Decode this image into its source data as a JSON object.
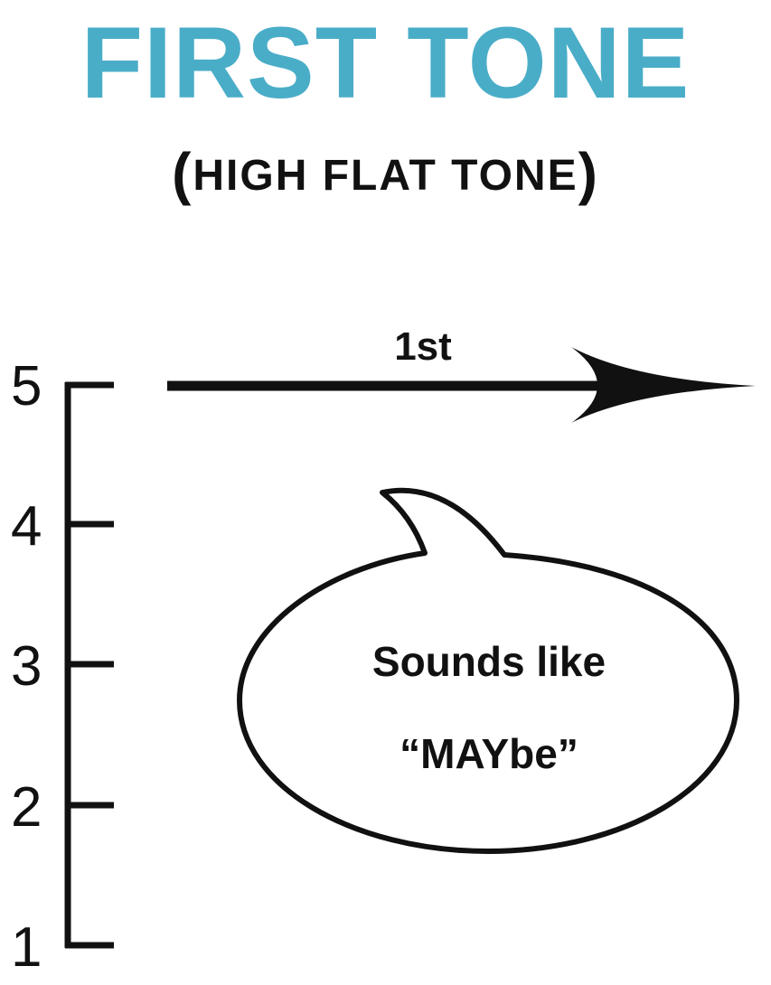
{
  "title": "FIRST TONE",
  "subtitle": {
    "open": "(",
    "text": "HIGH FLAT TONE",
    "close": ")"
  },
  "colors": {
    "title": "#4aadc8",
    "ink": "#111111",
    "background": "#ffffff"
  },
  "scale": {
    "levels": [
      "5",
      "4",
      "3",
      "2",
      "1"
    ]
  },
  "arrow": {
    "label": "1st"
  },
  "speech_bubble": {
    "line1": "Sounds like",
    "line2": "“MAYbe”"
  }
}
